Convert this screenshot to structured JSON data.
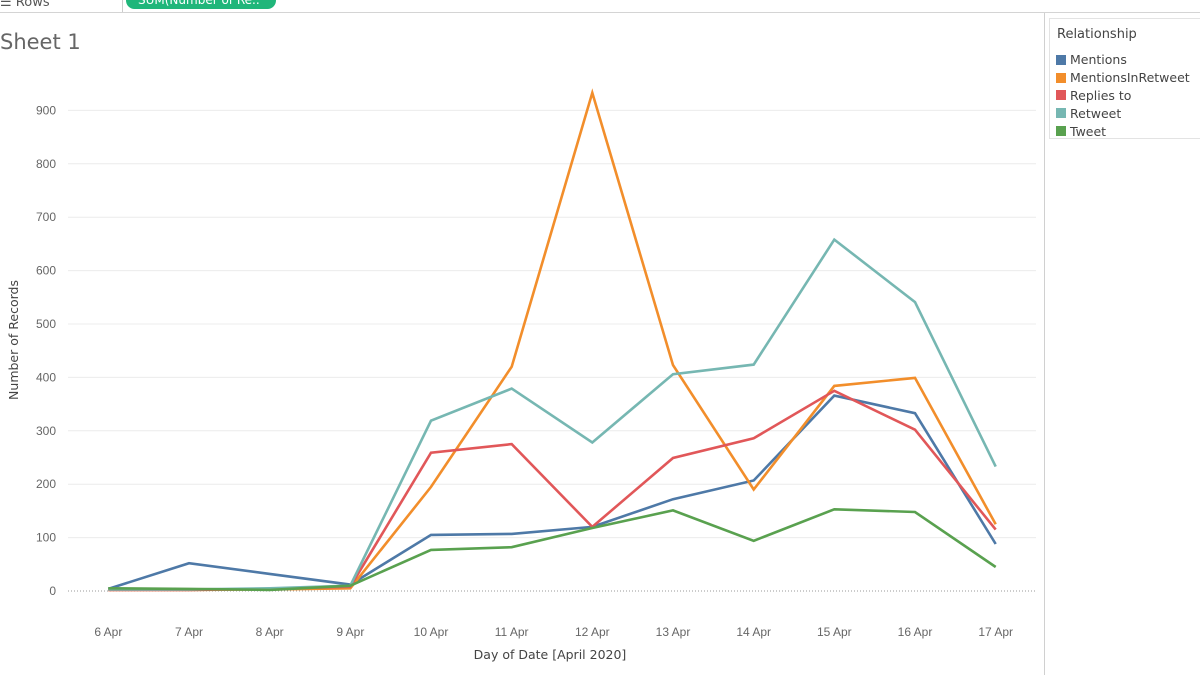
{
  "shelf": {
    "rows_label": "Rows",
    "pill_label": "SUM(Number of Re.."
  },
  "sheet": {
    "title": "Sheet 1"
  },
  "legend": {
    "title": "Relationship",
    "items": [
      {
        "label": "Mentions",
        "color": "#4e79a7"
      },
      {
        "label": "MentionsInRetweet",
        "color": "#f28e2b"
      },
      {
        "label": "Replies to",
        "color": "#e15759"
      },
      {
        "label": "Retweet",
        "color": "#76b7b2"
      },
      {
        "label": "Tweet",
        "color": "#59a14f"
      }
    ]
  },
  "chart_data": {
    "type": "line",
    "title": "",
    "xlabel": "Day of Date [April 2020]",
    "ylabel": "Number of Records",
    "x": [
      "6 Apr",
      "7 Apr",
      "8 Apr",
      "9 Apr",
      "10 Apr",
      "11 Apr",
      "12 Apr",
      "13 Apr",
      "14 Apr",
      "15 Apr",
      "16 Apr",
      "17 Apr"
    ],
    "ylim": [
      0,
      1000
    ],
    "yticks": [
      0,
      100,
      200,
      300,
      400,
      500,
      600,
      700,
      800,
      900
    ],
    "grid": true,
    "legend_position": "right",
    "series": [
      {
        "name": "Mentions",
        "color": "#4e79a7",
        "values": [
          4,
          52,
          32,
          12,
          105,
          107,
          120,
          172,
          207,
          366,
          333,
          88
        ]
      },
      {
        "name": "MentionsInRetweet",
        "color": "#f28e2b",
        "values": [
          2,
          2,
          3,
          5,
          195,
          420,
          933,
          423,
          190,
          384,
          399,
          125
        ]
      },
      {
        "name": "Replies to",
        "color": "#e15759",
        "values": [
          2,
          2,
          4,
          8,
          259,
          275,
          120,
          249,
          286,
          375,
          302,
          115
        ]
      },
      {
        "name": "Retweet",
        "color": "#76b7b2",
        "values": [
          3,
          3,
          5,
          10,
          319,
          379,
          278,
          406,
          424,
          658,
          541,
          233
        ]
      },
      {
        "name": "Tweet",
        "color": "#59a14f",
        "values": [
          5,
          4,
          2,
          10,
          77,
          82,
          118,
          151,
          94,
          153,
          148,
          45
        ]
      }
    ]
  }
}
